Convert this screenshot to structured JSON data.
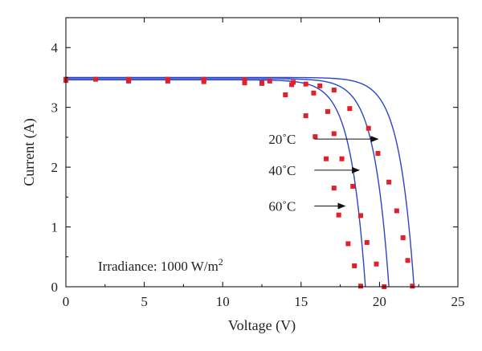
{
  "chart_data": {
    "type": "line",
    "xlabel": "Voltage (V)",
    "ylabel": "Current (A)",
    "xlim": [
      0,
      25
    ],
    "ylim": [
      0,
      4.5
    ],
    "xticks": [
      0,
      5,
      10,
      15,
      20,
      25
    ],
    "yticks": [
      0,
      1,
      2,
      3,
      4
    ],
    "grid": false,
    "series": [
      {
        "name": "20 °C",
        "isc": 3.5,
        "voc": 22.2,
        "line_color": "#2b45c8",
        "marker_color": "#e0212b",
        "points": [
          [
            0,
            3.47
          ],
          [
            1.9,
            3.47
          ],
          [
            4.0,
            3.47
          ],
          [
            6.5,
            3.47
          ],
          [
            8.8,
            3.47
          ],
          [
            11.4,
            3.46
          ],
          [
            13.0,
            3.44
          ],
          [
            14.5,
            3.42
          ],
          [
            15.3,
            3.39
          ],
          [
            16.2,
            3.36
          ],
          [
            17.1,
            3.29
          ],
          [
            18.1,
            2.98
          ],
          [
            19.3,
            2.65
          ],
          [
            19.9,
            2.23
          ],
          [
            20.6,
            1.75
          ],
          [
            21.1,
            1.27
          ],
          [
            21.5,
            0.82
          ],
          [
            21.8,
            0.44
          ],
          [
            22.1,
            0.01
          ]
        ]
      },
      {
        "name": "40 °C",
        "isc": 3.48,
        "voc": 20.6,
        "line_color": "#2b45c8",
        "marker_color": "#e0212b",
        "points": [
          [
            0,
            3.46
          ],
          [
            4.0,
            3.46
          ],
          [
            6.5,
            3.46
          ],
          [
            8.8,
            3.46
          ],
          [
            11.4,
            3.44
          ],
          [
            12.5,
            3.41
          ],
          [
            14.4,
            3.38
          ],
          [
            15.8,
            3.24
          ],
          [
            16.7,
            2.93
          ],
          [
            17.1,
            2.56
          ],
          [
            17.6,
            2.14
          ],
          [
            18.3,
            1.68
          ],
          [
            18.8,
            1.19
          ],
          [
            19.2,
            0.74
          ],
          [
            19.8,
            0.38
          ],
          [
            20.3,
            0.0
          ]
        ]
      },
      {
        "name": "60 °C",
        "isc": 3.46,
        "voc": 19.1,
        "line_color": "#2b45c8",
        "marker_color": "#e0212b",
        "points": [
          [
            0,
            3.45
          ],
          [
            4.0,
            3.44
          ],
          [
            6.5,
            3.44
          ],
          [
            8.8,
            3.43
          ],
          [
            11.4,
            3.41
          ],
          [
            12.5,
            3.4
          ],
          [
            14.0,
            3.21
          ],
          [
            15.3,
            2.86
          ],
          [
            15.9,
            2.51
          ],
          [
            16.6,
            2.14
          ],
          [
            17.1,
            1.65
          ],
          [
            17.4,
            1.2
          ],
          [
            18.0,
            0.72
          ],
          [
            18.4,
            0.35
          ],
          [
            18.8,
            0.01
          ]
        ]
      }
    ],
    "annotations": [
      {
        "text": "20˚C",
        "label_x": 16.0,
        "y": 2.47,
        "arrow_from": 16.0,
        "arrow_to": 19.9
      },
      {
        "text": "40˚C",
        "label_x": 16.0,
        "y": 1.95,
        "arrow_from": 16.0,
        "arrow_to": 18.7
      },
      {
        "text": "60˚C",
        "label_x": 16.0,
        "y": 1.35,
        "arrow_from": 16.0,
        "arrow_to": 17.8
      }
    ],
    "irradiance_label": "Irradiance: 1000 W/m",
    "irradiance_sup": "2"
  }
}
